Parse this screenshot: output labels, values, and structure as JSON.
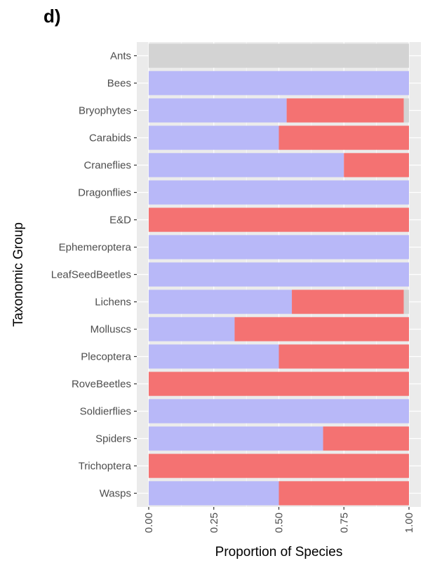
{
  "panel_label": "d)",
  "chart_data": {
    "type": "bar",
    "orientation": "horizontal",
    "stacked": true,
    "xlabel": "Proportion of Species",
    "ylabel": "Taxonomic Group",
    "xlim": [
      0,
      1
    ],
    "xticks": [
      "0.00",
      "0.25",
      "0.50",
      "0.75",
      "1.00"
    ],
    "grid": true,
    "categories": [
      "Ants",
      "Bees",
      "Bryophytes",
      "Carabids",
      "Craneflies",
      "Dragonflies",
      "E&D",
      "Ephemeroptera",
      "LeafSeedBeetles",
      "Lichens",
      "Molluscs",
      "Plecoptera",
      "RoveBeetles",
      "Soldierflies",
      "Spiders",
      "Trichoptera",
      "Wasps"
    ],
    "series": [
      {
        "color": "#b8b8f8",
        "values": [
          0,
          1.0,
          0.53,
          0.5,
          0.75,
          1.0,
          0,
          1.0,
          1.0,
          0.55,
          0.33,
          0.5,
          0,
          1.0,
          0.67,
          0,
          0.5
        ]
      },
      {
        "color": "#f47272",
        "values": [
          0,
          0,
          0.45,
          0.5,
          0.25,
          0,
          1.0,
          0,
          0,
          0.43,
          0.67,
          0.5,
          1.0,
          0,
          0.33,
          1.0,
          0.5
        ]
      },
      {
        "color": "#d3d3d3",
        "values": [
          1.0,
          0,
          0.02,
          0,
          0,
          0,
          0,
          0,
          0,
          0.02,
          0,
          0,
          0,
          0,
          0,
          0,
          0
        ]
      }
    ],
    "colors": {
      "panel_bg": "#ebebeb",
      "grid": "#ffffff",
      "tick": "#333333"
    }
  }
}
